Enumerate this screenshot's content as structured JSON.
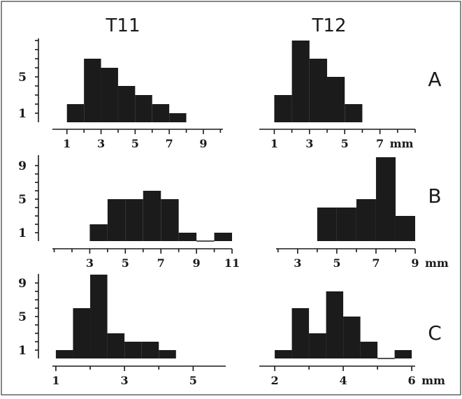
{
  "column_titles": [
    "T11",
    "T12"
  ],
  "row_letters": [
    "A",
    "B",
    "C"
  ],
  "chart_data": [
    {
      "type": "bar",
      "panel": "A-T11",
      "row": "A",
      "column": "T11",
      "x_ticks": [
        1,
        3,
        5,
        7,
        9
      ],
      "x_tick_labels": [
        "1",
        "3",
        "5",
        "7",
        "9"
      ],
      "y_ticks": [
        1,
        5
      ],
      "y_tick_labels": [
        "1",
        "5"
      ],
      "ylim": [
        0,
        10
      ],
      "bin_width": 1,
      "bins": [
        {
          "start": 1,
          "value": 2
        },
        {
          "start": 2,
          "value": 7
        },
        {
          "start": 3,
          "value": 6
        },
        {
          "start": 4,
          "value": 4
        },
        {
          "start": 5,
          "value": 3
        },
        {
          "start": 6,
          "value": 2
        },
        {
          "start": 7,
          "value": 1
        }
      ]
    },
    {
      "type": "bar",
      "panel": "A-T12",
      "row": "A",
      "column": "T12",
      "x_ticks": [
        1,
        3,
        5,
        7
      ],
      "x_tick_labels": [
        "1",
        "3",
        "5",
        "7"
      ],
      "unit": "mm",
      "ylim": [
        0,
        10
      ],
      "bin_width": 1,
      "bins": [
        {
          "start": 1,
          "value": 3
        },
        {
          "start": 2,
          "value": 9
        },
        {
          "start": 3,
          "value": 7
        },
        {
          "start": 4,
          "value": 5
        },
        {
          "start": 5,
          "value": 2
        }
      ]
    },
    {
      "type": "bar",
      "panel": "B-T11",
      "row": "B",
      "column": "T11",
      "x_ticks": [
        3,
        5,
        7,
        9,
        11
      ],
      "x_tick_labels": [
        "3",
        "5",
        "7",
        "9",
        "11"
      ],
      "y_ticks": [
        1,
        5,
        9
      ],
      "y_tick_labels": [
        "1",
        "5",
        "9"
      ],
      "ylim": [
        0,
        10
      ],
      "bin_width": 1,
      "bins": [
        {
          "start": 3,
          "value": 2
        },
        {
          "start": 4,
          "value": 5
        },
        {
          "start": 5,
          "value": 5
        },
        {
          "start": 6,
          "value": 6
        },
        {
          "start": 7,
          "value": 5
        },
        {
          "start": 8,
          "value": 1
        },
        {
          "start": 9,
          "value": 0
        },
        {
          "start": 10,
          "value": 1
        }
      ]
    },
    {
      "type": "bar",
      "panel": "B-T12",
      "row": "B",
      "column": "T12",
      "x_ticks": [
        3,
        5,
        7,
        9
      ],
      "x_tick_labels": [
        "3",
        "5",
        "7",
        "9"
      ],
      "unit": "mm",
      "ylim": [
        0,
        10
      ],
      "bin_width": 1,
      "bins": [
        {
          "start": 4,
          "value": 4
        },
        {
          "start": 5,
          "value": 4
        },
        {
          "start": 6,
          "value": 5
        },
        {
          "start": 7,
          "value": 10
        },
        {
          "start": 8,
          "value": 3
        }
      ]
    },
    {
      "type": "bar",
      "panel": "C-T11",
      "row": "C",
      "column": "T11",
      "x_ticks": [
        1,
        3,
        5
      ],
      "x_tick_labels": [
        "1",
        "3",
        "5"
      ],
      "y_ticks": [
        1,
        5,
        9
      ],
      "y_tick_labels": [
        "1",
        "5",
        "9"
      ],
      "ylim": [
        0,
        10
      ],
      "bin_width": 0.5,
      "bins": [
        {
          "start": 1.0,
          "value": 1
        },
        {
          "start": 1.5,
          "value": 6
        },
        {
          "start": 2.0,
          "value": 10
        },
        {
          "start": 2.5,
          "value": 3
        },
        {
          "start": 3.0,
          "value": 2
        },
        {
          "start": 3.5,
          "value": 2
        },
        {
          "start": 4.0,
          "value": 1
        }
      ]
    },
    {
      "type": "bar",
      "panel": "C-T12",
      "row": "C",
      "column": "T12",
      "x_ticks": [
        2,
        4,
        6
      ],
      "x_tick_labels": [
        "2",
        "4",
        "6"
      ],
      "unit": "mm",
      "ylim": [
        0,
        10
      ],
      "bin_width": 0.5,
      "bins": [
        {
          "start": 2.0,
          "value": 1
        },
        {
          "start": 2.5,
          "value": 6
        },
        {
          "start": 3.0,
          "value": 3
        },
        {
          "start": 3.5,
          "value": 8
        },
        {
          "start": 4.0,
          "value": 5
        },
        {
          "start": 4.5,
          "value": 2
        },
        {
          "start": 5.0,
          "value": 0
        },
        {
          "start": 5.5,
          "value": 1
        }
      ]
    }
  ]
}
